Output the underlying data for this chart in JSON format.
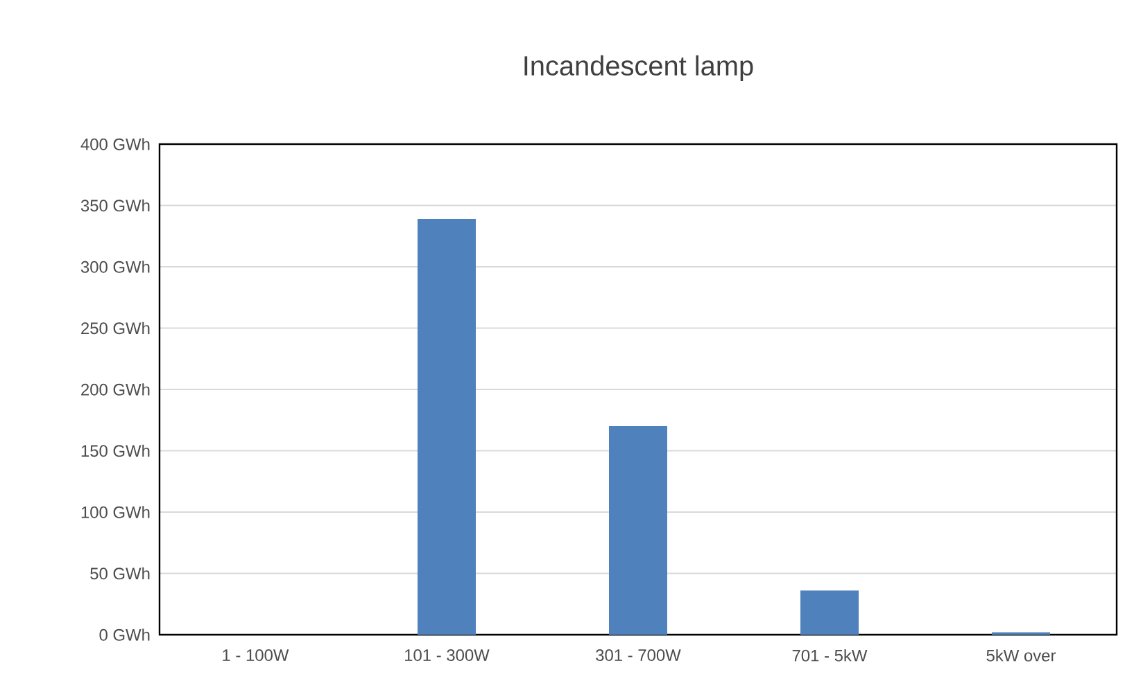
{
  "chart_data": {
    "type": "bar",
    "title": "Incandescent lamp",
    "categories": [
      "1 - 100W",
      "101 - 300W",
      "301 - 700W",
      "701 - 5kW",
      "5kW over"
    ],
    "values": [
      0,
      339,
      170,
      36,
      2
    ],
    "color": "#4f81bd",
    "ylim": [
      0,
      400
    ],
    "yticks": [
      {
        "value": 0,
        "label": "0 GWh"
      },
      {
        "value": 50,
        "label": "50 GWh"
      },
      {
        "value": 100,
        "label": "100 GWh"
      },
      {
        "value": 150,
        "label": "150 GWh"
      },
      {
        "value": 200,
        "label": "200 GWh"
      },
      {
        "value": 250,
        "label": "250 GWh"
      },
      {
        "value": 300,
        "label": "300 GWh"
      },
      {
        "value": 350,
        "label": "350 GWh"
      },
      {
        "value": 400,
        "label": "400 GWh"
      }
    ],
    "grid": "y"
  }
}
